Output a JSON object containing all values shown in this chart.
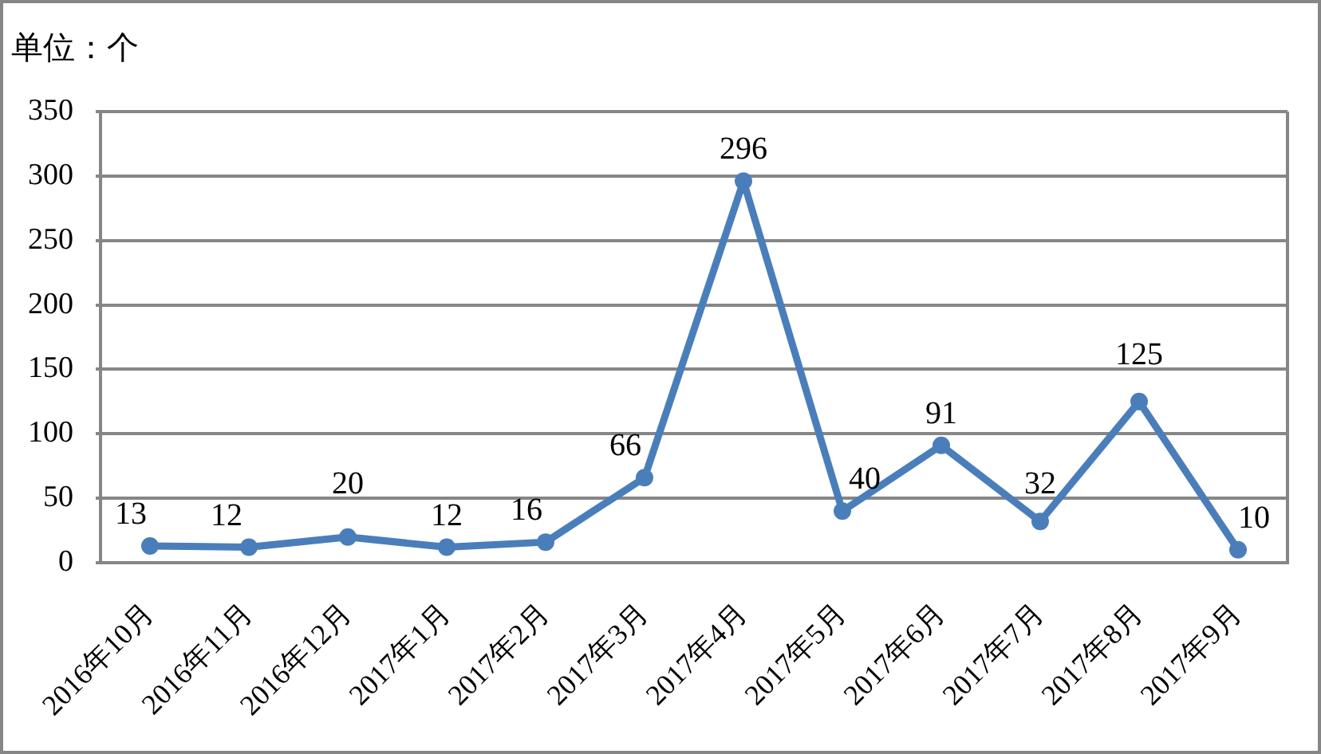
{
  "chart_data": {
    "type": "line",
    "ylabel": "单位：个",
    "categories": [
      "2016年10月",
      "2016年11月",
      "2016年12月",
      "2017年1月",
      "2017年2月",
      "2017年3月",
      "2017年4月",
      "2017年5月",
      "2017年6月",
      "2017年7月",
      "2017年8月",
      "2017年9月"
    ],
    "series": [
      {
        "color": "#4a7ebb",
        "values": [
          13,
          12,
          20,
          12,
          16,
          66,
          296,
          40,
          91,
          32,
          125,
          10
        ]
      }
    ],
    "ylim": [
      0,
      350
    ],
    "yticks": [
      0,
      50,
      100,
      150,
      200,
      250,
      300,
      350
    ],
    "grid": "y",
    "legend": false,
    "marker": "circle",
    "line_style": "solid",
    "data_labels": true
  }
}
